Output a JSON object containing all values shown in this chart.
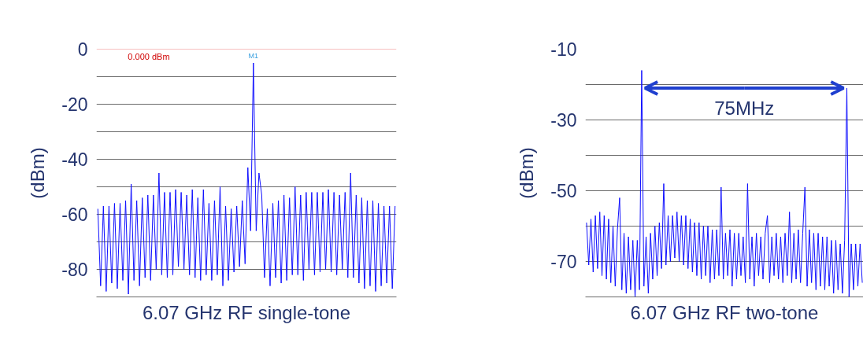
{
  "chart_data": [
    {
      "type": "line",
      "xlabel": "6.07 GHz RF single-tone",
      "ylabel": "(dBm)",
      "ylim": [
        -90,
        0
      ],
      "yticks": [
        0,
        {
          "value": -10,
          "label": null
        },
        -20,
        {
          "value": -30,
          "label": null
        },
        -40,
        {
          "value": -50,
          "label": null
        },
        -60,
        {
          "value": -70,
          "label": null
        },
        -80,
        {
          "value": -90,
          "label": null
        }
      ],
      "tick_labels": "y",
      "grid": "y",
      "color": "#1010ff",
      "ref_lines": [
        {
          "axis": "y",
          "value": 0,
          "label": "0.000 dBm",
          "color": "#f08080"
        }
      ],
      "annotations": [
        "M1"
      ],
      "categories": [
        null,
        null,
        null,
        null,
        null,
        null,
        null,
        null,
        null,
        null,
        null,
        null,
        null,
        null,
        null,
        null,
        null,
        null,
        null,
        null,
        null,
        null,
        null,
        null,
        null,
        null,
        null,
        null,
        null,
        null,
        null,
        null,
        null,
        null,
        null,
        null,
        null,
        null,
        null,
        null,
        null,
        null,
        null,
        null,
        null,
        null,
        null,
        null,
        null,
        null,
        null,
        null,
        null,
        null,
        null,
        null,
        null,
        null,
        null,
        null,
        null,
        null,
        null,
        null,
        null,
        null,
        null,
        null,
        null,
        null,
        null,
        null,
        null,
        null,
        null,
        null,
        null,
        null,
        null,
        null,
        null,
        null,
        null,
        null,
        null,
        null,
        null,
        null,
        null,
        null,
        null,
        null,
        null,
        null,
        null,
        null,
        null,
        null,
        null,
        null,
        null,
        null,
        null,
        null,
        null,
        null,
        null,
        null
      ],
      "values": [
        -58,
        -86,
        -57,
        -88,
        -57,
        -85,
        -56,
        -87,
        -56,
        -84,
        -55,
        -89,
        -49,
        -84,
        -55,
        -86,
        -54,
        -83,
        -53,
        -84,
        -53,
        -80,
        -45,
        -82,
        -52,
        -83,
        -52,
        -82,
        -51,
        -79,
        -52,
        -80,
        -53,
        -82,
        -51,
        -83,
        -54,
        -84,
        -51,
        -82,
        -56,
        -84,
        -55,
        -82,
        -50,
        -86,
        -57,
        -84,
        -58,
        -81,
        -57,
        -79,
        -55,
        -78,
        -43,
        -66,
        -5,
        -66,
        -45,
        -53,
        -83,
        -58,
        -86,
        -56,
        -83,
        -55,
        -85,
        -53,
        -84,
        -54,
        -82,
        -50,
        -82,
        -53,
        -84,
        -52,
        -80,
        -52,
        -82,
        -52,
        -81,
        -52,
        -80,
        -51,
        -81,
        -52,
        -82,
        -53,
        -80,
        -52,
        -83,
        -45,
        -83,
        -53,
        -85,
        -54,
        -87,
        -55,
        -86,
        -55,
        -88,
        -56,
        -86,
        -57,
        -85,
        -57,
        -87,
        -57
      ]
    },
    {
      "type": "line",
      "xlabel": "6.07 GHz RF two-tone",
      "ylabel": "(dBm)",
      "ylim": [
        -80,
        -10
      ],
      "yticks": [
        -10,
        {
          "value": -20,
          "label": null
        },
        -30,
        {
          "value": -40,
          "label": null
        },
        -50,
        {
          "value": -60,
          "label": null
        },
        -70,
        {
          "value": -80,
          "label": null
        }
      ],
      "tick_labels": "y",
      "grid": "y",
      "color": "#1010ff",
      "annotations": [
        {
          "text": "75MHz"
        }
      ],
      "categories": [
        null,
        null,
        null,
        null,
        null,
        null,
        null,
        null,
        null,
        null,
        null,
        null,
        null,
        null,
        null,
        null,
        null,
        null,
        null,
        null,
        null,
        null,
        null,
        null,
        null,
        null,
        null,
        null,
        null,
        null,
        null,
        null,
        null,
        null,
        null,
        null,
        null,
        null,
        null,
        null,
        null,
        null,
        null,
        null,
        null,
        null,
        null,
        null,
        null,
        null,
        null,
        null,
        null,
        null,
        null,
        null,
        null,
        null,
        null,
        null,
        null,
        null,
        null,
        null,
        null,
        null,
        null,
        null,
        null,
        null,
        null,
        null,
        null,
        null,
        null,
        null,
        null,
        null,
        null,
        null,
        null,
        null,
        null,
        null,
        null,
        null,
        null,
        null,
        null,
        null,
        null,
        null,
        null,
        null,
        null,
        null,
        null,
        null,
        null,
        null,
        null,
        null,
        null,
        null,
        null,
        null,
        null,
        null,
        null,
        null,
        null,
        null,
        null,
        null,
        null,
        null,
        null,
        null,
        null,
        null,
        null,
        null,
        null,
        null,
        null,
        null
      ],
      "values": [
        -59,
        -71,
        -58,
        -73,
        -57,
        -72,
        -56,
        -74,
        -57,
        -75,
        -58,
        -76,
        -60,
        -77,
        -61,
        -52,
        -78,
        -62,
        -79,
        -63,
        -78,
        -64,
        -80,
        -64,
        -78,
        -16,
        -77,
        -63,
        -79,
        -62,
        -75,
        -60,
        -74,
        -59,
        -72,
        -48,
        -71,
        -57,
        -70,
        -57,
        -69,
        -56,
        -70,
        -57,
        -71,
        -57,
        -72,
        -58,
        -73,
        -59,
        -74,
        -59,
        -75,
        -60,
        -74,
        -60,
        -76,
        -61,
        -75,
        -61,
        -74,
        -49,
        -75,
        -62,
        -74,
        -61,
        -77,
        -62,
        -75,
        -62,
        -74,
        -63,
        -76,
        -48,
        -75,
        -63,
        -77,
        -62,
        -74,
        -63,
        -75,
        -62,
        -57,
        -76,
        -63,
        -74,
        -62,
        -75,
        -63,
        -76,
        -62,
        -74,
        -56,
        -76,
        -62,
        -75,
        -61,
        -76,
        -62,
        -49,
        -77,
        -61,
        -76,
        -62,
        -78,
        -62,
        -77,
        -63,
        -78,
        -63,
        -77,
        -64,
        -79,
        -64,
        -78,
        -65,
        -79,
        -64,
        -21,
        -80,
        -65,
        -78,
        -65,
        -77,
        -65,
        -76
      ]
    }
  ]
}
